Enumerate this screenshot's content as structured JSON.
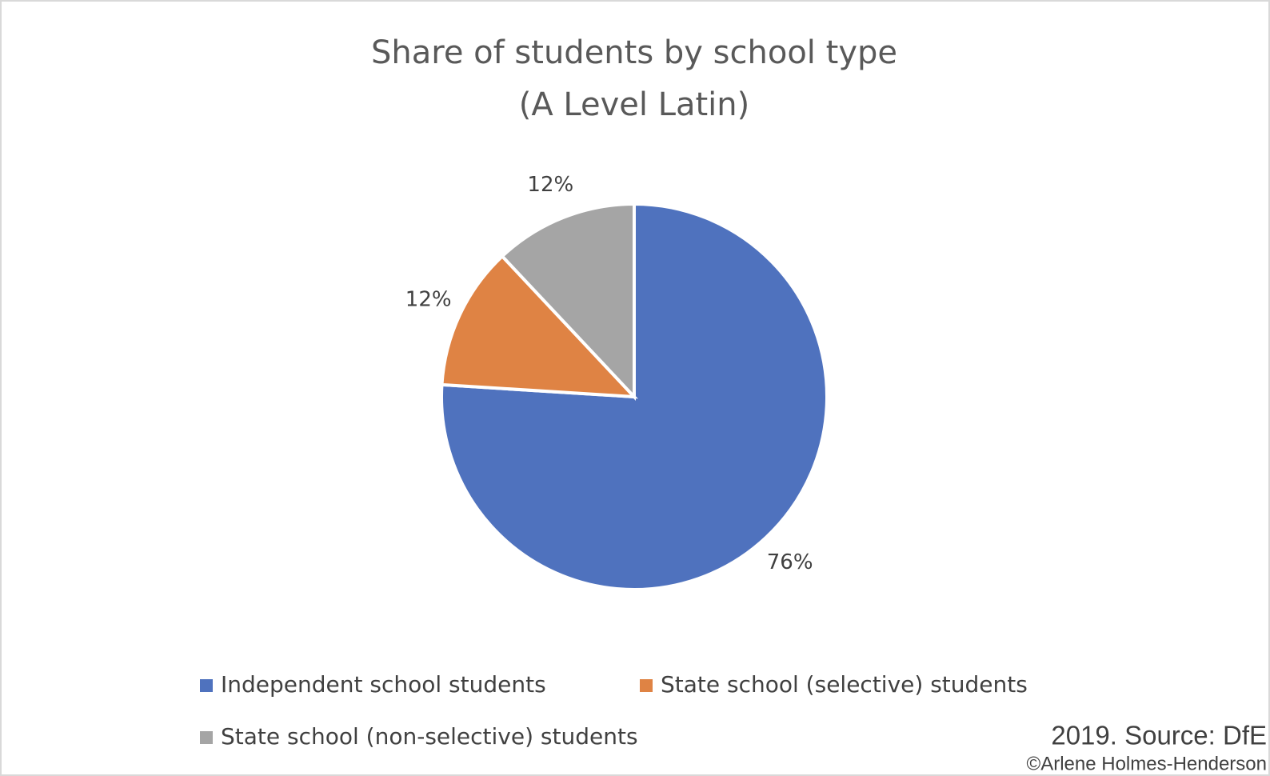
{
  "chart_data": {
    "type": "pie",
    "title": "Share of students by school type",
    "subtitle": "(A Level Latin)",
    "categories": [
      "Independent school students",
      "State school (selective) students",
      "State school (non-selective) students"
    ],
    "values": [
      76,
      12,
      12
    ],
    "value_labels": [
      "76%",
      "12%",
      "12%"
    ],
    "colors": [
      "#4f72be",
      "#df8344",
      "#a5a5a5"
    ],
    "legend": "bottom",
    "source": "2019. Source: DfE",
    "credit": "©Arlene Holmes-Henderson"
  }
}
